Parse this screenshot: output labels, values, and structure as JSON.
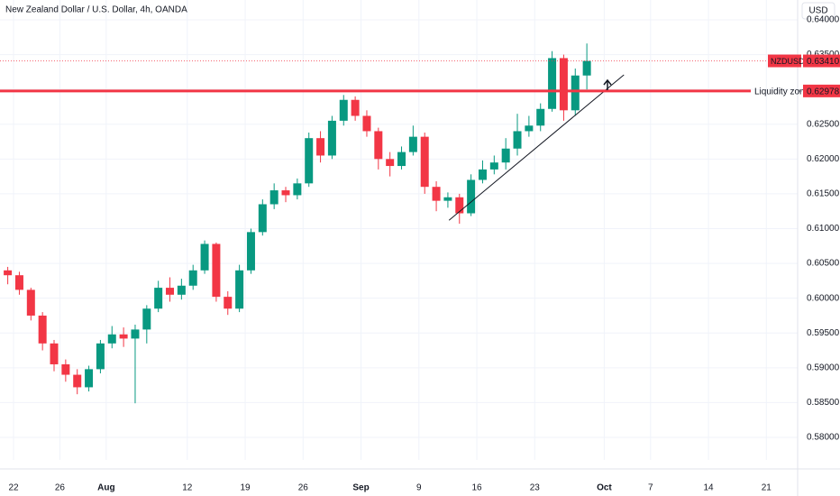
{
  "chart_data": {
    "type": "candlestick",
    "title": "New Zealand Dollar / U.S. Dollar, 4h, OANDA",
    "currency": "USD",
    "symbol": "NZDUSD",
    "last_price": {
      "value": 0.6341,
      "label": "0.63410"
    },
    "up_color": "#089981",
    "down_color": "#f23645",
    "x": [
      -0.5,
      0.5,
      1.5,
      2.5,
      3.5,
      4.5,
      5.5,
      6.5,
      7.5,
      8.5,
      9.5,
      10.5,
      11.5,
      12.5,
      13.5,
      14.5,
      15.5,
      16.5,
      17.5,
      18.5,
      19.5,
      20.5,
      21.5,
      22.5,
      23.5,
      24.5,
      25.5,
      26.5,
      27.5,
      28.5,
      29.5,
      30.5,
      31.5,
      32.5,
      33.5,
      34.5,
      35.5,
      36.5,
      37.5,
      38.5,
      39.5,
      40.5,
      41.5,
      42.5,
      43.5,
      44.5,
      45.5,
      46.5,
      47.5,
      48.5,
      49.5
    ],
    "open": [
      0.604,
      0.6033,
      0.6012,
      0.5975,
      0.5935,
      0.5905,
      0.589,
      0.5872,
      0.5898,
      0.5935,
      0.5948,
      0.5942,
      0.5955,
      0.5985,
      0.6015,
      0.6005,
      0.6018,
      0.604,
      0.6078,
      0.6002,
      0.5985,
      0.604,
      0.6095,
      0.6135,
      0.6155,
      0.6148,
      0.6165,
      0.623,
      0.6205,
      0.6255,
      0.6285,
      0.6262,
      0.624,
      0.62,
      0.619,
      0.621,
      0.6232,
      0.616,
      0.614,
      0.6145,
      0.6122,
      0.617,
      0.6185,
      0.6195,
      0.6215,
      0.624,
      0.6248,
      0.6272,
      0.6345,
      0.627,
      0.632
    ],
    "high": [
      0.6045,
      0.6038,
      0.6015,
      0.598,
      0.594,
      0.5912,
      0.5898,
      0.5903,
      0.594,
      0.596,
      0.5958,
      0.5962,
      0.599,
      0.6025,
      0.603,
      0.6028,
      0.6048,
      0.6083,
      0.608,
      0.601,
      0.6048,
      0.61,
      0.6142,
      0.6165,
      0.616,
      0.6172,
      0.6238,
      0.624,
      0.6262,
      0.6292,
      0.629,
      0.627,
      0.6245,
      0.621,
      0.6218,
      0.6248,
      0.6238,
      0.6168,
      0.6152,
      0.615,
      0.6178,
      0.6198,
      0.6205,
      0.623,
      0.6265,
      0.6262,
      0.628,
      0.6355,
      0.635,
      0.633,
      0.6366
    ],
    "low": [
      0.602,
      0.6005,
      0.5968,
      0.5925,
      0.5895,
      0.588,
      0.5862,
      0.5866,
      0.5892,
      0.5928,
      0.593,
      0.5849,
      0.5935,
      0.598,
      0.5995,
      0.5998,
      0.6012,
      0.6035,
      0.5995,
      0.5976,
      0.598,
      0.6035,
      0.609,
      0.6128,
      0.6138,
      0.6142,
      0.616,
      0.6195,
      0.62,
      0.6248,
      0.6255,
      0.6232,
      0.6185,
      0.6175,
      0.6185,
      0.6205,
      0.615,
      0.6125,
      0.613,
      0.6107,
      0.6118,
      0.6165,
      0.6178,
      0.6185,
      0.6205,
      0.6232,
      0.624,
      0.6268,
      0.6255,
      0.6262,
      0.63
    ],
    "close": [
      0.6033,
      0.6012,
      0.5975,
      0.5935,
      0.5905,
      0.589,
      0.5872,
      0.5898,
      0.5935,
      0.5948,
      0.5942,
      0.5955,
      0.5985,
      0.6015,
      0.6005,
      0.6018,
      0.604,
      0.6078,
      0.6002,
      0.5985,
      0.604,
      0.6095,
      0.6135,
      0.6155,
      0.6148,
      0.6165,
      0.623,
      0.6205,
      0.6255,
      0.6285,
      0.6262,
      0.624,
      0.62,
      0.619,
      0.621,
      0.6232,
      0.616,
      0.614,
      0.6145,
      0.6122,
      0.617,
      0.6185,
      0.6195,
      0.6215,
      0.624,
      0.6248,
      0.6272,
      0.6345,
      0.627,
      0.632,
      0.6341
    ],
    "xlim": [
      -1.17,
      67.7
    ],
    "ylim": [
      0.57676,
      0.64285
    ],
    "xticks": [
      {
        "value": 0,
        "label": "22"
      },
      {
        "value": 4,
        "label": "26"
      },
      {
        "value": 8,
        "label": "Aug"
      },
      {
        "value": 15,
        "label": "12"
      },
      {
        "value": 20,
        "label": "19"
      },
      {
        "value": 25,
        "label": "26"
      },
      {
        "value": 30,
        "label": "Sep"
      },
      {
        "value": 35,
        "label": "9"
      },
      {
        "value": 40,
        "label": "16"
      },
      {
        "value": 45,
        "label": "23"
      },
      {
        "value": 51,
        "label": "Oct"
      },
      {
        "value": 55,
        "label": "7"
      },
      {
        "value": 60,
        "label": "14"
      },
      {
        "value": 65,
        "label": "21"
      }
    ],
    "yticks": [
      {
        "value": 0.58,
        "label": "0.58000"
      },
      {
        "value": 0.585,
        "label": "0.58500"
      },
      {
        "value": 0.59,
        "label": "0.59000"
      },
      {
        "value": 0.595,
        "label": "0.59500"
      },
      {
        "value": 0.6,
        "label": "0.60000"
      },
      {
        "value": 0.605,
        "label": "0.60500"
      },
      {
        "value": 0.61,
        "label": "0.61000"
      },
      {
        "value": 0.615,
        "label": "0.61500"
      },
      {
        "value": 0.62,
        "label": "0.62000"
      },
      {
        "value": 0.625,
        "label": "0.62500"
      },
      {
        "value": 0.63,
        "label": "0.63000"
      },
      {
        "value": 0.635,
        "label": "0.63500"
      },
      {
        "value": 0.64,
        "label": "0.64000"
      }
    ],
    "grid": true,
    "level": {
      "label": "Liquidity zone",
      "value": 0.62978,
      "value_label": "0.62978",
      "color": "#f23645"
    },
    "trendline": {
      "x": [
        37.6,
        52.7
      ],
      "y": [
        0.6112,
        0.6321
      ]
    }
  }
}
